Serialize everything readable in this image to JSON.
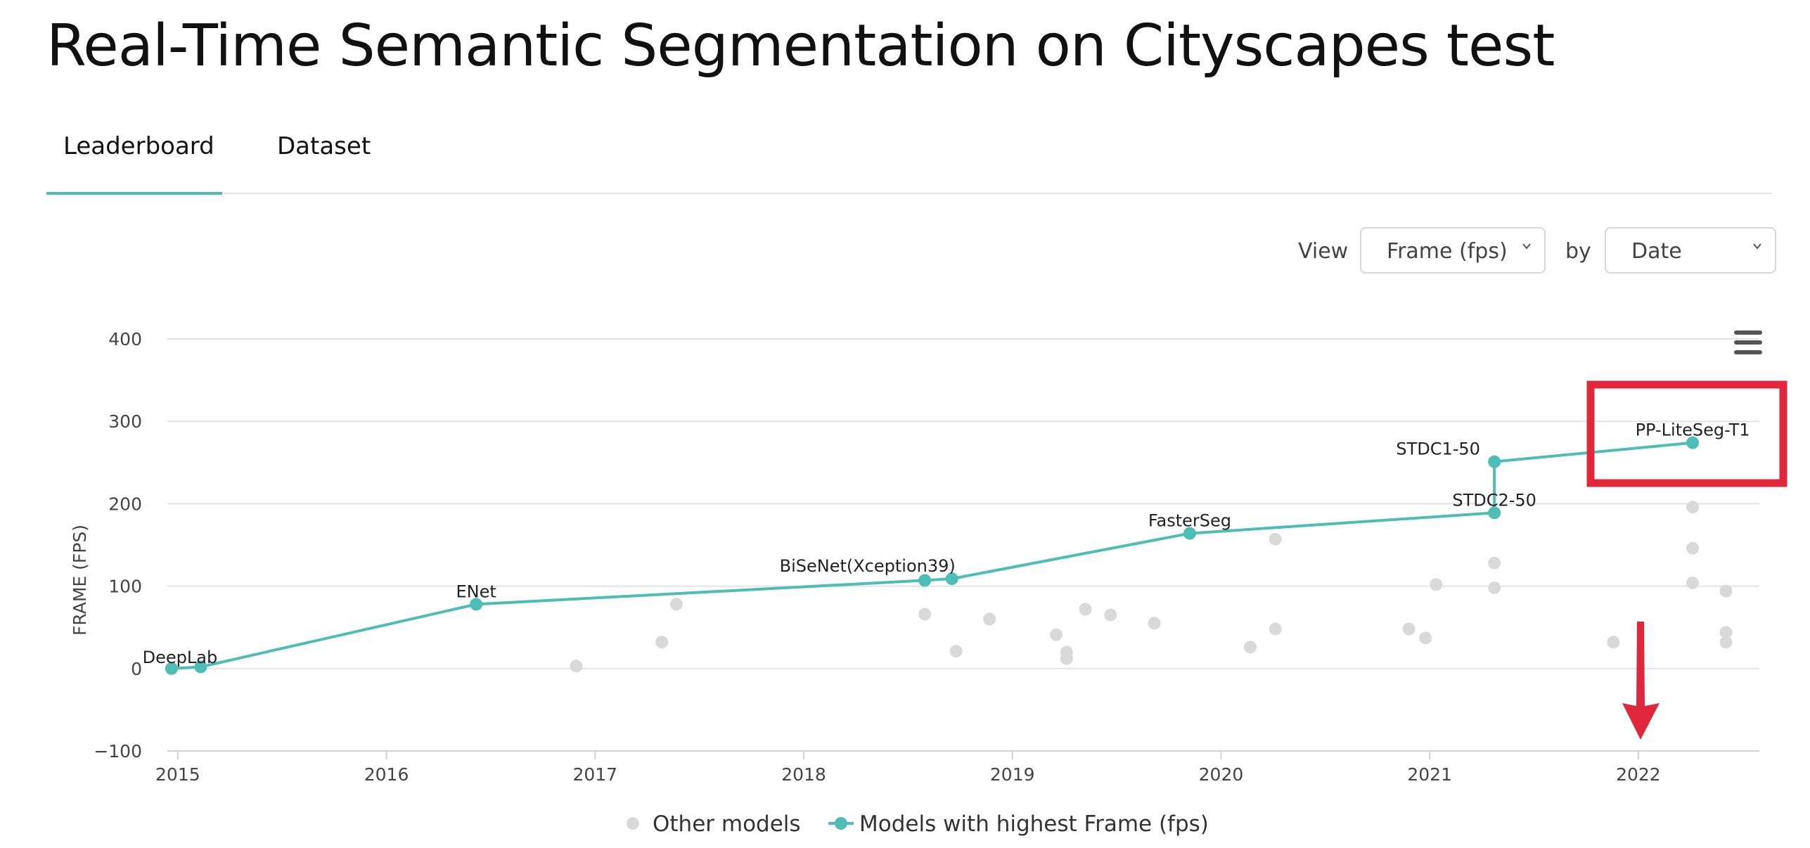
{
  "page": {
    "title": "Real-Time Semantic Segmentation on Cityscapes test",
    "tabs": [
      {
        "label": "Leaderboard",
        "active": true
      },
      {
        "label": "Dataset",
        "active": false
      }
    ]
  },
  "controls": {
    "view_label": "View",
    "metric_select": "Frame (fps)",
    "by_label": "by",
    "order_select": "Date"
  },
  "colors": {
    "accent": "#4dbdb5",
    "other": "#d9d9d9",
    "highlight": "#e0283c"
  },
  "icons": {
    "menu": "hamburger-menu-icon",
    "select": "chevron-down-icon"
  },
  "chart_data": {
    "type": "scatter",
    "xlabel": "",
    "ylabel": "FRAME (FPS)",
    "xlim": [
      2014.95,
      2022.58
    ],
    "ylim": [
      -100,
      400
    ],
    "y_ticks": [
      -100,
      0,
      100,
      200,
      300,
      400
    ],
    "x_ticks": [
      2015,
      2016,
      2017,
      2018,
      2019,
      2020,
      2021,
      2022
    ],
    "grid": true,
    "legend": [
      "Other models",
      "Models with highest Frame (fps)"
    ],
    "legend_position": "bottom",
    "best_series": {
      "name": "Models with highest Frame (fps)",
      "points": [
        {
          "x": 2014.97,
          "y": 0,
          "label": "DeepLab"
        },
        {
          "x": 2015.11,
          "y": 2,
          "label": ""
        },
        {
          "x": 2016.43,
          "y": 78,
          "label": "ENet"
        },
        {
          "x": 2018.58,
          "y": 107,
          "label": ""
        },
        {
          "x": 2018.71,
          "y": 109,
          "label": "BiSeNet(Xception39)"
        },
        {
          "x": 2019.85,
          "y": 164,
          "label": "FasterSeg"
        },
        {
          "x": 2021.31,
          "y": 189,
          "label": "STDC2-50"
        },
        {
          "x": 2021.31,
          "y": 251,
          "label": "STDC1-50"
        },
        {
          "x": 2022.26,
          "y": 274,
          "label": "PP-LiteSeg-T1"
        }
      ]
    },
    "other_series": {
      "name": "Other models",
      "points": [
        {
          "x": 2016.91,
          "y": 3
        },
        {
          "x": 2017.32,
          "y": 32
        },
        {
          "x": 2017.39,
          "y": 78
        },
        {
          "x": 2018.58,
          "y": 66
        },
        {
          "x": 2018.73,
          "y": 21
        },
        {
          "x": 2018.89,
          "y": 60
        },
        {
          "x": 2019.21,
          "y": 41
        },
        {
          "x": 2019.26,
          "y": 20
        },
        {
          "x": 2019.26,
          "y": 12
        },
        {
          "x": 2019.35,
          "y": 72
        },
        {
          "x": 2019.47,
          "y": 65
        },
        {
          "x": 2019.68,
          "y": 55
        },
        {
          "x": 2020.14,
          "y": 26
        },
        {
          "x": 2020.26,
          "y": 48
        },
        {
          "x": 2020.26,
          "y": 157
        },
        {
          "x": 2020.9,
          "y": 48
        },
        {
          "x": 2020.98,
          "y": 37
        },
        {
          "x": 2021.03,
          "y": 102
        },
        {
          "x": 2021.31,
          "y": 128
        },
        {
          "x": 2021.31,
          "y": 98
        },
        {
          "x": 2021.88,
          "y": 32
        },
        {
          "x": 2022.26,
          "y": 196
        },
        {
          "x": 2022.26,
          "y": 146
        },
        {
          "x": 2022.26,
          "y": 104
        },
        {
          "x": 2022.42,
          "y": 94
        },
        {
          "x": 2022.42,
          "y": 44
        },
        {
          "x": 2022.42,
          "y": 32
        }
      ]
    }
  }
}
